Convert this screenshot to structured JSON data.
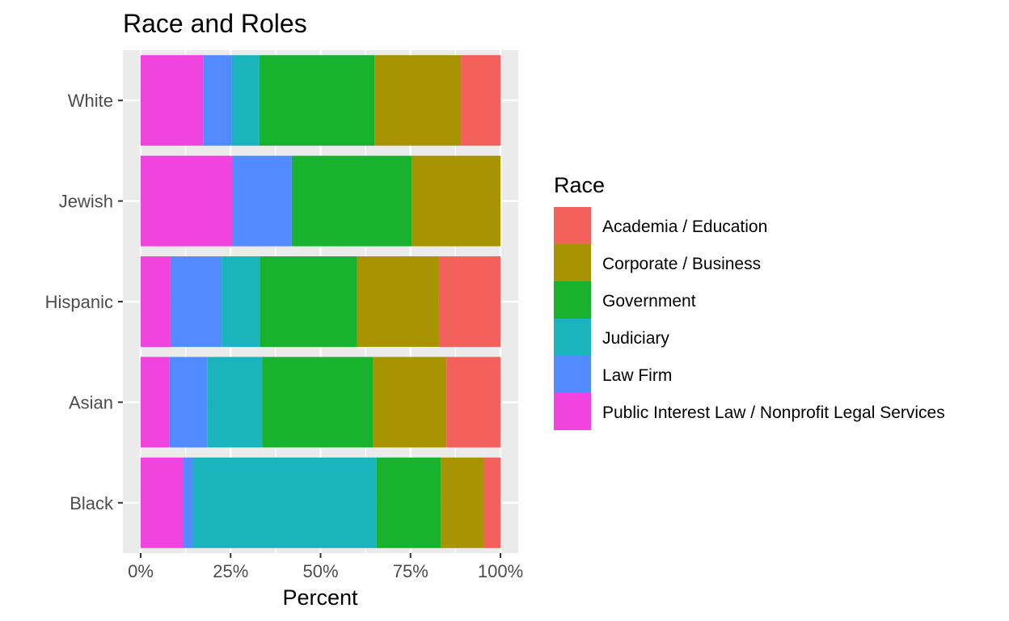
{
  "chart_data": {
    "type": "bar",
    "orientation": "horizontal",
    "stacked": "percent",
    "title": "Race and Roles",
    "xlabel": "Percent",
    "ylabel": "",
    "xlim": [
      0,
      1
    ],
    "x_ticks": [
      "0%",
      "25%",
      "50%",
      "75%",
      "100%"
    ],
    "x_tick_values": [
      0,
      0.25,
      0.5,
      0.75,
      1
    ],
    "categories": [
      "White",
      "Jewish",
      "Hispanic",
      "Asian",
      "Black"
    ],
    "legend": {
      "title": "Race",
      "placement": "right"
    },
    "series": [
      {
        "name": "Public Interest Law / Nonprofit Legal Services",
        "color": "#F143DE",
        "values": [
          0.175,
          0.255,
          0.083,
          0.08,
          0.118
        ]
      },
      {
        "name": "Law Firm",
        "color": "#528AFF",
        "values": [
          0.078,
          0.165,
          0.142,
          0.105,
          0.027
        ]
      },
      {
        "name": "Judiciary",
        "color": "#19B4BC",
        "values": [
          0.077,
          0.0,
          0.106,
          0.153,
          0.511
        ]
      },
      {
        "name": "Government",
        "color": "#18B22F",
        "values": [
          0.32,
          0.333,
          0.27,
          0.307,
          0.178
        ]
      },
      {
        "name": "Corporate / Business",
        "color": "#A89300",
        "values": [
          0.24,
          0.247,
          0.228,
          0.205,
          0.12
        ]
      },
      {
        "name": "Academia / Education",
        "color": "#F4605B",
        "values": [
          0.11,
          0.0,
          0.171,
          0.15,
          0.046
        ]
      }
    ],
    "legend_order": [
      "Academia / Education",
      "Corporate / Business",
      "Government",
      "Judiciary",
      "Law Firm",
      "Public Interest Law / Nonprofit Legal Services"
    ],
    "grid": true,
    "panel_background": "#EBEBEB",
    "grid_color": "#FFFFFF"
  }
}
